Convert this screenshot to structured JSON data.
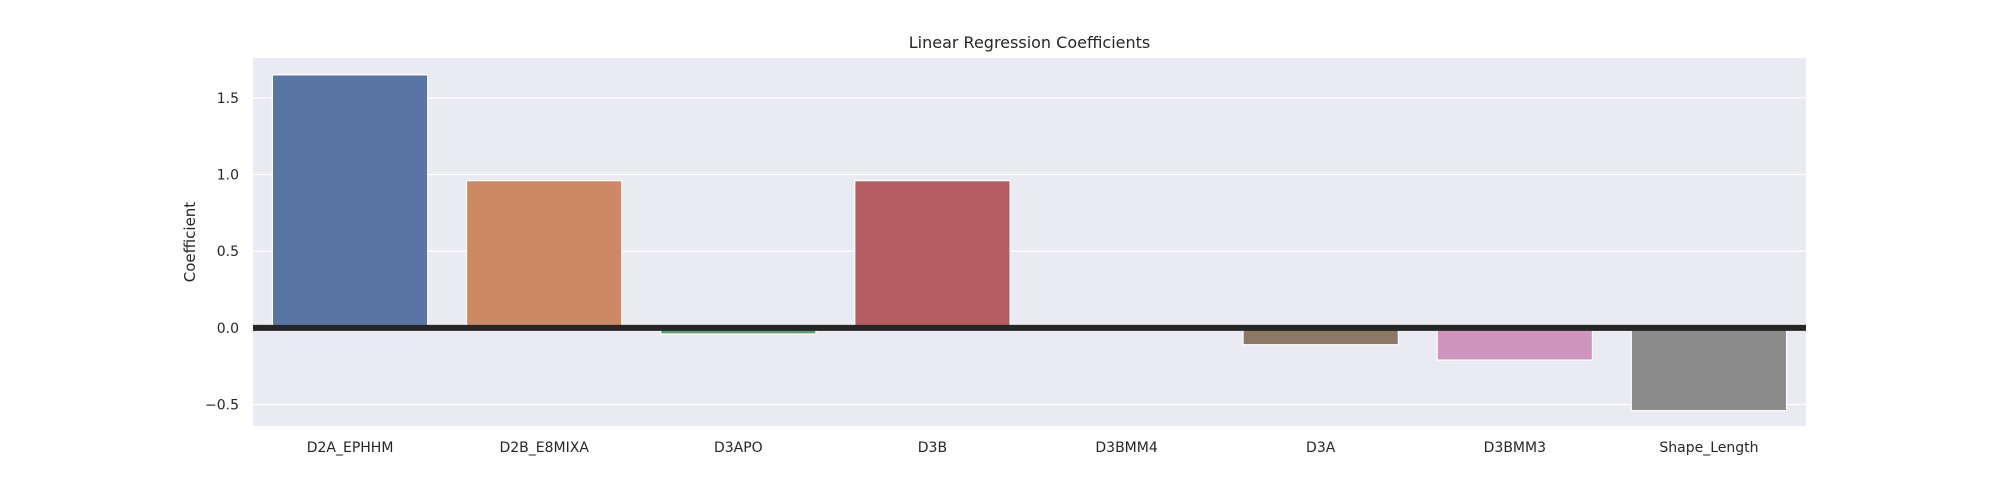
{
  "chart_data": {
    "type": "bar",
    "title": "Linear Regression Coefficients",
    "xlabel": "",
    "ylabel": "Coefficient",
    "categories": [
      "D2A_EPHHM",
      "D2B_E8MIXA",
      "D3APO",
      "D3B",
      "D3BMM4",
      "D3A",
      "D3BMM3",
      "Shape_Length"
    ],
    "values": [
      1.65,
      0.96,
      -0.04,
      0.96,
      0.0,
      -0.11,
      -0.21,
      -0.54
    ],
    "colors": [
      "#5875a4",
      "#cc8963",
      "#5f9e6e",
      "#b55d60",
      "#857aab",
      "#8d7866",
      "#d095bf",
      "#8c8c8c"
    ],
    "ylim": [
      -0.64,
      1.76
    ],
    "yticks": [
      -0.5,
      0.0,
      0.5,
      1.0,
      1.5
    ],
    "ytick_labels": [
      "−0.5",
      "0.0",
      "0.5",
      "1.0",
      "1.5"
    ],
    "zero_line": true,
    "grid": true,
    "background": "#eaeaf2"
  }
}
